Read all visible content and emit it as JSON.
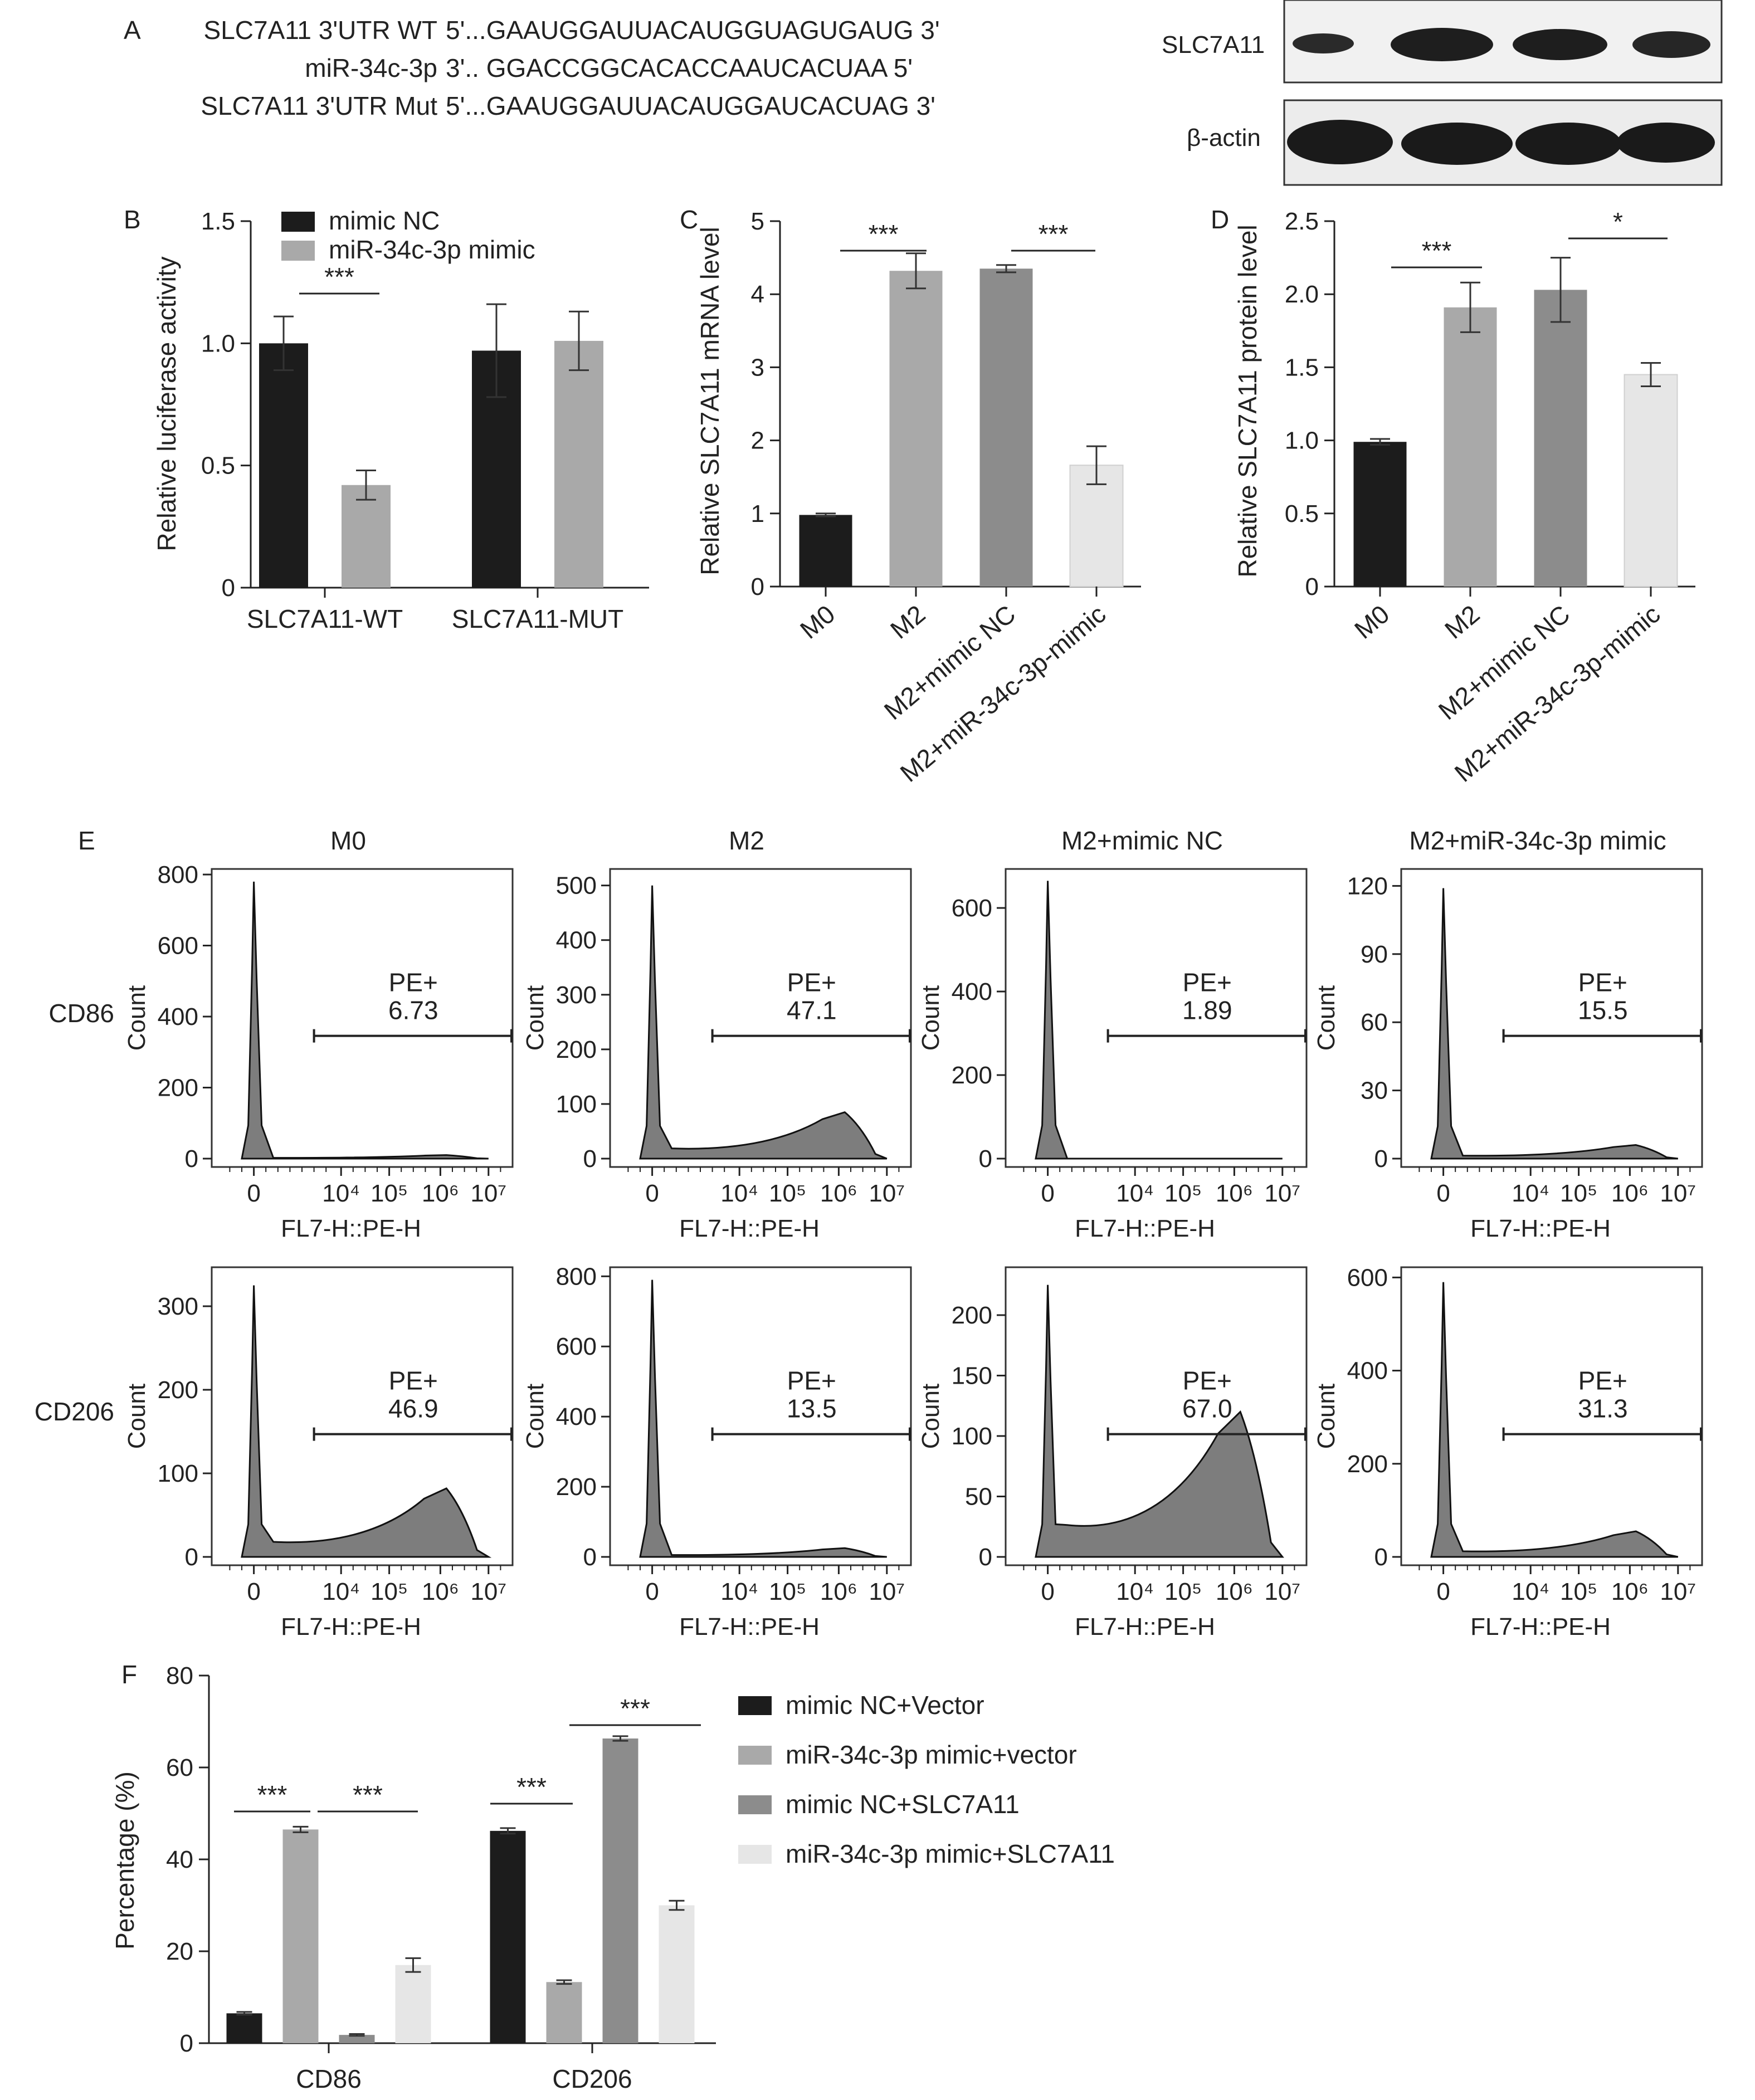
{
  "panel_a": {
    "letter": "A",
    "seq": [
      {
        "label": "SLC7A11  3'UTR   WT",
        "seq": "5'...GAAUGGAUUACAUGGUAGUGAUG  3'"
      },
      {
        "label": "miR-34c-3p",
        "seq": "3'.. GGACCGGCACACCAAUCACUAA  5'"
      },
      {
        "label": "SLC7A11 3'UTR  Mut",
        "seq": "5'...GAAUGGAUUACAUGGAUCACUAG  3'"
      }
    ],
    "blot": {
      "labels": [
        "SLC7A11",
        "β-actin"
      ]
    }
  },
  "colors": {
    "black": "#1c1c1c",
    "gray1": "#a9a9a9",
    "gray2": "#8c8c8c",
    "light": "#e6e6e6",
    "hist_fill": "#7d7d7d"
  },
  "chart_data": [
    {
      "id": "B",
      "type": "bar",
      "letter": "B",
      "ylabel": "Relative luciferase activity",
      "categories": [
        "SLC7A11-WT",
        "SLC7A11-MUT"
      ],
      "ylim": [
        0,
        1.5
      ],
      "yticks": [
        "0",
        "0.5",
        "1.0",
        "1.5"
      ],
      "series": [
        {
          "name": "mimic NC",
          "color": "#1c1c1c",
          "values": [
            1.0,
            0.97
          ],
          "errors": [
            0.11,
            0.19
          ]
        },
        {
          "name": "miR-34c-3p mimic",
          "color": "#a9a9a9",
          "values": [
            0.42,
            1.01
          ],
          "errors": [
            0.06,
            0.12
          ]
        }
      ],
      "significance": [
        {
          "text": "***"
        }
      ],
      "legend_position": "top"
    },
    {
      "id": "C",
      "type": "bar",
      "letter": "C",
      "ylabel": "Relative SLC7A11 mRNA level",
      "categories": [
        "M0",
        "M2",
        "M2+mimic NC",
        "M2+miR-34c-3p-mimic"
      ],
      "ylim": [
        0,
        5
      ],
      "yticks": [
        "0",
        "1",
        "2",
        "3",
        "4",
        "5"
      ],
      "values": [
        0.98,
        4.32,
        4.35,
        1.66
      ],
      "errors": [
        0.02,
        0.24,
        0.05,
        0.26
      ],
      "colors": [
        "#1c1c1c",
        "#a9a9a9",
        "#8c8c8c",
        "#e6e6e6"
      ],
      "significance": [
        {
          "text": "***"
        },
        {
          "text": "***"
        }
      ]
    },
    {
      "id": "D",
      "type": "bar",
      "letter": "D",
      "ylabel": "Relative SLC7A11 protein level",
      "categories": [
        "M0",
        "M2",
        "M2+mimic NC",
        "M2+miR-34c-3p-mimic"
      ],
      "ylim": [
        0,
        2.5
      ],
      "yticks": [
        "0",
        "0.5",
        "1.0",
        "1.5",
        "2.0",
        "2.5"
      ],
      "values": [
        0.99,
        1.91,
        2.03,
        1.45
      ],
      "errors": [
        0.02,
        0.17,
        0.22,
        0.08
      ],
      "colors": [
        "#1c1c1c",
        "#a9a9a9",
        "#8c8c8c",
        "#e6e6e6"
      ],
      "significance": [
        {
          "text": "***"
        },
        {
          "text": "*"
        }
      ]
    },
    {
      "id": "E",
      "type": "area",
      "letter": "E",
      "xlabel": "FL7-H::PE-H",
      "ylabel": "Count",
      "xticks": [
        "0",
        "10⁴",
        "10⁵",
        "10⁶",
        "10⁷"
      ],
      "columns": [
        "M0",
        "M2",
        "M2+mimic NC",
        "M2+miR-34c-3p mimic"
      ],
      "rows": [
        "CD86",
        "CD206"
      ],
      "gate_label": "PE+",
      "panels": [
        {
          "row": 0,
          "col": 0,
          "ymax": 800,
          "yticks": [
            "0",
            "200",
            "400",
            "600",
            "800"
          ],
          "peak_count": 780,
          "second_count": 10,
          "pe_value": "6.73"
        },
        {
          "row": 0,
          "col": 1,
          "ymax": 520,
          "yticks": [
            "0",
            "100",
            "200",
            "300",
            "400",
            "500"
          ],
          "peak_count": 500,
          "second_count": 85,
          "pe_value": "47.1"
        },
        {
          "row": 0,
          "col": 2,
          "ymax": 680,
          "yticks": [
            "0",
            "200",
            "400",
            "600"
          ],
          "peak_count": 665,
          "second_count": 0,
          "pe_value": "1.89"
        },
        {
          "row": 0,
          "col": 3,
          "ymax": 125,
          "yticks": [
            "0",
            "30",
            "60",
            "90",
            "120"
          ],
          "peak_count": 119,
          "second_count": 6,
          "pe_value": "15.5"
        },
        {
          "row": 1,
          "col": 0,
          "ymax": 340,
          "yticks": [
            "0",
            "100",
            "200",
            "300"
          ],
          "peak_count": 325,
          "second_count": 82,
          "pe_value": "46.9"
        },
        {
          "row": 1,
          "col": 1,
          "ymax": 810,
          "yticks": [
            "0",
            "200",
            "400",
            "600",
            "800"
          ],
          "peak_count": 790,
          "second_count": 25,
          "pe_value": "13.5"
        },
        {
          "row": 1,
          "col": 2,
          "ymax": 235,
          "yticks": [
            "0",
            "50",
            "100",
            "150",
            "200"
          ],
          "peak_count": 225,
          "second_count": 120,
          "pe_value": "67.0"
        },
        {
          "row": 1,
          "col": 3,
          "ymax": 610,
          "yticks": [
            "0",
            "200",
            "400",
            "600"
          ],
          "peak_count": 590,
          "second_count": 55,
          "pe_value": "31.3"
        }
      ]
    },
    {
      "id": "F",
      "type": "bar",
      "letter": "F",
      "ylabel": "Percentage (%)",
      "categories": [
        "CD86",
        "CD206"
      ],
      "ylim": [
        0,
        80
      ],
      "yticks": [
        "0",
        "20",
        "40",
        "60",
        "80"
      ],
      "series": [
        {
          "name": "mimic NC+Vector",
          "color": "#1c1c1c",
          "values": [
            6.5,
            46.2
          ],
          "errors": [
            0.3,
            0.6
          ]
        },
        {
          "name": "miR-34c-3p mimic+vector",
          "color": "#a9a9a9",
          "values": [
            46.5,
            13.3
          ],
          "errors": [
            0.6,
            0.4
          ]
        },
        {
          "name": "mimic NC+SLC7A11",
          "color": "#8c8c8c",
          "values": [
            1.8,
            66.3
          ],
          "errors": [
            0.2,
            0.5
          ]
        },
        {
          "name": "miR-34c-3p mimic+SLC7A11",
          "color": "#e6e6e6",
          "values": [
            17.0,
            30.0
          ],
          "errors": [
            1.5,
            1.0
          ]
        }
      ],
      "significance": [
        {
          "text": "***"
        },
        {
          "text": "***"
        },
        {
          "text": "***"
        },
        {
          "text": "***"
        }
      ],
      "legend_position": "right"
    }
  ]
}
